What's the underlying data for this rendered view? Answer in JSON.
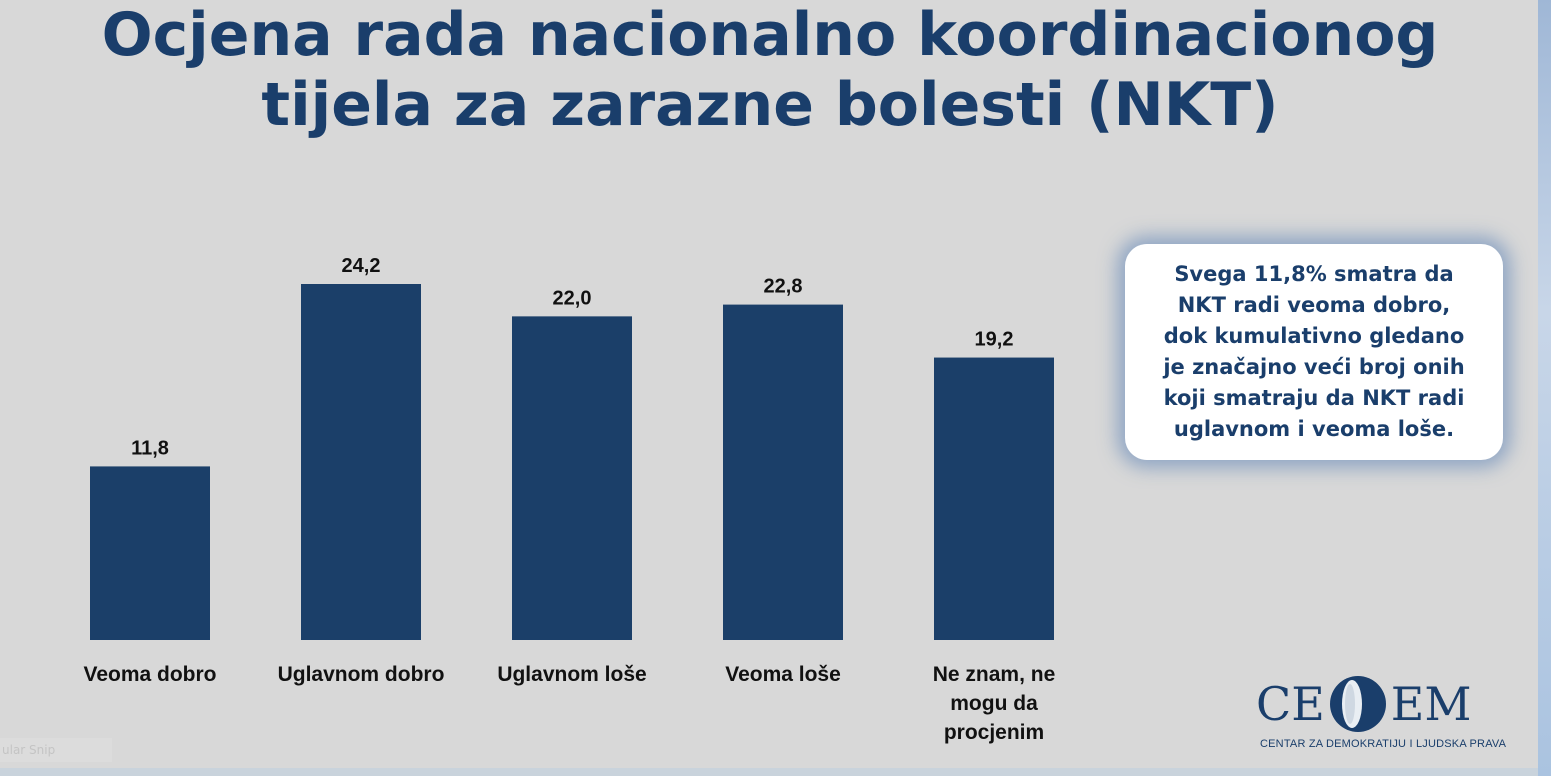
{
  "title_lines": [
    "Ocjena rada nacionalno koordinacionog",
    "tijela za zarazne bolesti (NKT)"
  ],
  "chart_data": {
    "type": "bar",
    "title": "Ocjena rada nacionalno koordinacionog tijela za zarazne bolesti (NKT)",
    "categories": [
      "Veoma dobro",
      "Uglavnom dobro",
      "Uglavnom loše",
      "Veoma loše",
      "Ne znam, ne mogu da procjenim"
    ],
    "category_lines": [
      [
        "Veoma dobro"
      ],
      [
        "Uglavnom dobro"
      ],
      [
        "Uglavnom loše"
      ],
      [
        "Veoma loše"
      ],
      [
        "Ne znam, ne",
        "mogu da",
        "procjenim"
      ]
    ],
    "values": [
      11.8,
      24.2,
      22.0,
      22.8,
      19.2
    ],
    "value_labels": [
      "11,8",
      "24,2",
      "22,0",
      "22,8",
      "19,2"
    ],
    "bar_color": "#1b3f69",
    "xlabel": "",
    "ylabel": "",
    "ylim": [
      0,
      24.2
    ],
    "grid": false,
    "legend": "none"
  },
  "callout": {
    "text": "Svega 11,8% smatra da\nNKT radi veoma dobro,\ndok kumulativno gledano\nje značajno veći broj onih\nkoji smatraju da NKT radi\nuglavnom i veoma loše."
  },
  "logo": {
    "letters_left": "CE",
    "letters_right": "EM",
    "subtitle": "CENTAR ZA DEMOKRATIJU I LJUDSKA PRAVA"
  },
  "snip_label": "ular Snip",
  "colors": {
    "title": "#1a3e6b",
    "background": "#d8d8d8",
    "bar": "#1b3f69"
  }
}
